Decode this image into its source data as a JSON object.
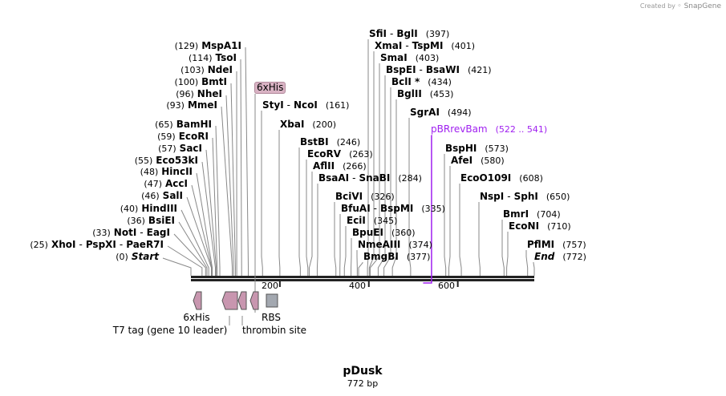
{
  "credit": {
    "prefix": "Created by",
    "brand": "SnapGene"
  },
  "sequence": {
    "name": "pDusk",
    "length_label": "772 bp",
    "length": 772
  },
  "axis_ticks": [
    "200",
    "400",
    "600"
  ],
  "colors": {
    "feature": "#c896af",
    "rbs": "#a3a8b0",
    "primer": "#a020f0",
    "line": "#888888"
  },
  "left_sites": [
    {
      "names": [
        "MspA1I"
      ],
      "pos": "(129)",
      "bp": 129
    },
    {
      "names": [
        "TsoI"
      ],
      "pos": "(114)",
      "bp": 114
    },
    {
      "names": [
        "NdeI"
      ],
      "pos": "(103)",
      "bp": 103
    },
    {
      "names": [
        "BmtI"
      ],
      "pos": "(100)",
      "bp": 100
    },
    {
      "names": [
        "NheI"
      ],
      "pos": "(96)",
      "bp": 96
    },
    {
      "names": [
        "MmeI"
      ],
      "pos": "(93)",
      "bp": 93
    },
    {
      "names": [
        "BamHI"
      ],
      "pos": "(65)",
      "bp": 65
    },
    {
      "names": [
        "EcoRI"
      ],
      "pos": "(59)",
      "bp": 59
    },
    {
      "names": [
        "SacI"
      ],
      "pos": "(57)",
      "bp": 57
    },
    {
      "names": [
        "Eco53kI"
      ],
      "pos": "(55)",
      "bp": 55
    },
    {
      "names": [
        "HincII"
      ],
      "pos": "(48)",
      "bp": 48
    },
    {
      "names": [
        "AccI"
      ],
      "pos": "(47)",
      "bp": 47
    },
    {
      "names": [
        "SalI"
      ],
      "pos": "(46)",
      "bp": 46
    },
    {
      "names": [
        "HindIII"
      ],
      "pos": "(40)",
      "bp": 40
    },
    {
      "names": [
        "BsiEI"
      ],
      "pos": "(36)",
      "bp": 36
    },
    {
      "names": [
        "NotI",
        "EagI"
      ],
      "pos": "(33)",
      "bp": 33
    },
    {
      "names": [
        "XhoI",
        "PspXI",
        "PaeR7I"
      ],
      "pos": "(25)",
      "bp": 25
    },
    {
      "names": [
        "Start"
      ],
      "pos": "(0)",
      "bp": 0,
      "italic": true
    }
  ],
  "right_sites": [
    {
      "names": [
        "SfiI",
        "BglI"
      ],
      "pos": "(397)",
      "bp": 397
    },
    {
      "names": [
        "XmaI",
        "TspMI"
      ],
      "pos": "(401)",
      "bp": 401
    },
    {
      "names": [
        "SmaI"
      ],
      "pos": "(403)",
      "bp": 403
    },
    {
      "names": [
        "BspEI",
        "BsaWI"
      ],
      "pos": "(421)",
      "bp": 421
    },
    {
      "names": [
        "BclI *"
      ],
      "pos": "(434)",
      "bp": 434
    },
    {
      "names": [
        "BglII"
      ],
      "pos": "(453)",
      "bp": 453
    },
    {
      "names": [
        "SgrAI"
      ],
      "pos": "(494)",
      "bp": 494
    },
    {
      "names": [
        "BspHI"
      ],
      "pos": "(573)",
      "bp": 573
    },
    {
      "names": [
        "AfeI"
      ],
      "pos": "(580)",
      "bp": 580
    },
    {
      "names": [
        "EcoO109I"
      ],
      "pos": "(608)",
      "bp": 608
    },
    {
      "names": [
        "NspI",
        "SphI"
      ],
      "pos": "(650)",
      "bp": 650
    },
    {
      "names": [
        "BmrI"
      ],
      "pos": "(704)",
      "bp": 704
    },
    {
      "names": [
        "EcoNI"
      ],
      "pos": "(710)",
      "bp": 710
    },
    {
      "names": [
        "PflMI"
      ],
      "pos": "(757)",
      "bp": 757
    },
    {
      "names": [
        "End"
      ],
      "pos": "(772)",
      "bp": 772,
      "italic": true
    },
    {
      "names": [
        "StyI",
        "NcoI"
      ],
      "pos": "(161)",
      "bp": 161
    },
    {
      "names": [
        "XbaI"
      ],
      "pos": "(200)",
      "bp": 200
    },
    {
      "names": [
        "BstBI"
      ],
      "pos": "(246)",
      "bp": 246
    },
    {
      "names": [
        "EcoRV"
      ],
      "pos": "(263)",
      "bp": 263
    },
    {
      "names": [
        "AflII"
      ],
      "pos": "(266)",
      "bp": 266
    },
    {
      "names": [
        "BsaAI",
        "SnaBI"
      ],
      "pos": "(284)",
      "bp": 284
    },
    {
      "names": [
        "BciVI"
      ],
      "pos": "(326)",
      "bp": 326
    },
    {
      "names": [
        "BfuAI",
        "BspMI"
      ],
      "pos": "(335)",
      "bp": 335
    },
    {
      "names": [
        "EciI"
      ],
      "pos": "(345)",
      "bp": 345
    },
    {
      "names": [
        "BpuEI"
      ],
      "pos": "(360)",
      "bp": 360
    },
    {
      "names": [
        "NmeAIII"
      ],
      "pos": "(374)",
      "bp": 374
    },
    {
      "names": [
        "BmgBI"
      ],
      "pos": "(377)",
      "bp": 377
    }
  ],
  "primer": {
    "name": "pBRrevBam",
    "range": "(522 .. 541)",
    "start": 522,
    "end": 541
  },
  "badge": "6xHis",
  "features": {
    "his": "6xHis",
    "t7": "T7 tag (gene 10 leader)",
    "thrombin": "thrombin site",
    "rbs": "RBS"
  }
}
